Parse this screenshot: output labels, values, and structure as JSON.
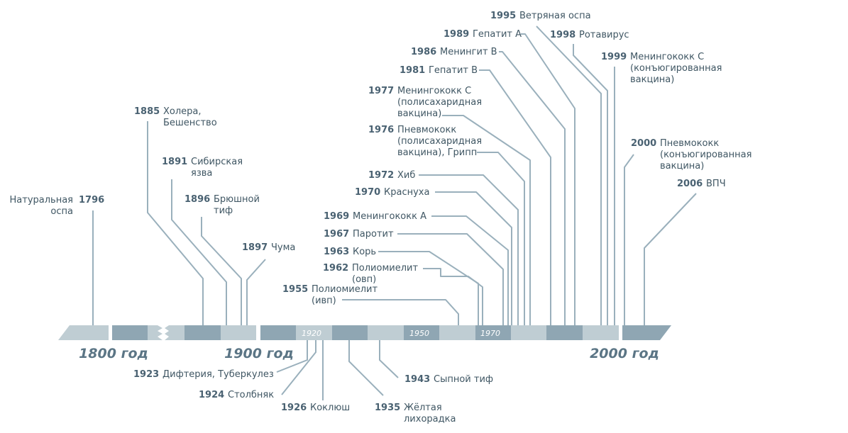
{
  "era_labels": [
    "1800 год",
    "1900 год",
    "2000 год"
  ],
  "decade_ticks": [
    "1920",
    "1950",
    "1970"
  ],
  "events_above": [
    {
      "year": "1796",
      "lines": [
        "Натуральная",
        "оспа"
      ]
    },
    {
      "year": "1885",
      "lines": [
        "Холера,",
        "Бешенство"
      ]
    },
    {
      "year": "1891",
      "lines": [
        "Сибирская",
        "язва"
      ]
    },
    {
      "year": "1896",
      "lines": [
        "Брюшной",
        "тиф"
      ]
    },
    {
      "year": "1897",
      "lines": [
        "Чума"
      ]
    },
    {
      "year": "1955",
      "lines": [
        "Полиомиелит",
        "(ивп)"
      ]
    },
    {
      "year": "1962",
      "lines": [
        "Полиомиелит",
        "(овп)"
      ]
    },
    {
      "year": "1963",
      "lines": [
        "Корь"
      ]
    },
    {
      "year": "1967",
      "lines": [
        "Паротит"
      ]
    },
    {
      "year": "1969",
      "lines": [
        "Менингококк А"
      ]
    },
    {
      "year": "1970",
      "lines": [
        "Краснуха"
      ]
    },
    {
      "year": "1972",
      "lines": [
        "Хиб"
      ]
    },
    {
      "year": "1976",
      "lines": [
        "Пневмококк",
        "(полисахаридная",
        "вакцина), Грипп"
      ]
    },
    {
      "year": "1977",
      "lines": [
        "Менингококк С",
        "(полисахаридная",
        "вакцина)"
      ]
    },
    {
      "year": "1981",
      "lines": [
        "Гепатит В"
      ]
    },
    {
      "year": "1986",
      "lines": [
        "Менингит В"
      ]
    },
    {
      "year": "1989",
      "lines": [
        "Гепатит А"
      ]
    },
    {
      "year": "1995",
      "lines": [
        "Ветряная оспа"
      ]
    },
    {
      "year": "1998",
      "lines": [
        "Ротавирус"
      ]
    },
    {
      "year": "1999",
      "lines": [
        "Менингококк С",
        "(конъюгированная",
        "вакцина)"
      ]
    },
    {
      "year": "2000",
      "lines": [
        "Пневмококк",
        "(конъюгированная",
        "вакцина)"
      ]
    },
    {
      "year": "2006",
      "lines": [
        "ВПЧ"
      ]
    }
  ],
  "events_below": [
    {
      "year": "1923",
      "lines": [
        "Дифтерия, Туберкулез"
      ]
    },
    {
      "year": "1924",
      "lines": [
        "Столбняк"
      ]
    },
    {
      "year": "1926",
      "lines": [
        "Коклюш"
      ]
    },
    {
      "year": "1935",
      "lines": [
        "Жёлтая",
        "лихорадка"
      ]
    },
    {
      "year": "1943",
      "lines": [
        "Сыпной тиф"
      ]
    }
  ],
  "colors": {
    "light_segment": "#bfcdd3",
    "dark_segment": "#8fa6b3",
    "leader_line": "#9ab0bc",
    "year_text": "#4a6272",
    "label_text": "#3f5663",
    "era_text": "#5b7585"
  }
}
